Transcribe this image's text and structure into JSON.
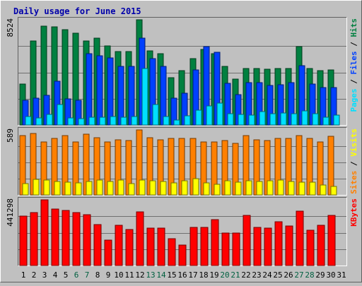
{
  "chart_data": {
    "type": "bar",
    "title": "Daily usage for June 2015",
    "x": [
      "1",
      "2",
      "3",
      "4",
      "5",
      "6",
      "7",
      "8",
      "9",
      "10",
      "11",
      "12",
      "13",
      "14",
      "15",
      "16",
      "17",
      "18",
      "19",
      "20",
      "21",
      "22",
      "23",
      "24",
      "25",
      "26",
      "27",
      "28",
      "29",
      "30",
      "31"
    ],
    "weekend_days": [
      6,
      7,
      13,
      14,
      20,
      21,
      27,
      28
    ],
    "colors": {
      "title": "#0000aa",
      "hits": "#008040",
      "files": "#0040ff",
      "pages": "#00e0ff",
      "visits": "#ffff00",
      "sites": "#ff8000",
      "kbytes": "#ff0000",
      "weekday_label": "#000000",
      "weekend_label": "#006040"
    },
    "panels": [
      {
        "id": "requests",
        "ymax_label": "8524",
        "ymax": 8524,
        "legend": [
          {
            "text": "Pages",
            "color": "#00e0ff"
          },
          {
            "text": "Files",
            "color": "#0040ff"
          },
          {
            "text": "Hits",
            "color": "#008040"
          }
        ],
        "series": [
          {
            "name": "Hits",
            "color": "#008040",
            "values": [
              3290,
              6800,
              8000,
              7950,
              7750,
              7450,
              6780,
              7060,
              6400,
              5940,
              5940,
              8524,
              6030,
              5770,
              3860,
              4430,
              5390,
              6100,
              5770,
              4750,
              3700,
              4580,
              4580,
              4530,
              4580,
              4570,
              6330,
              4580,
              4430,
              4490,
              0
            ]
          },
          {
            "name": "Files",
            "color": "#0040ff",
            "values": [
              1990,
              2190,
              2410,
              3520,
              2130,
              1990,
              5750,
              5630,
              5460,
              4740,
              4720,
              7050,
              5400,
              4720,
              2160,
              2590,
              4450,
              6350,
              5900,
              3350,
              2480,
              3450,
              3450,
              3210,
              3280,
              3450,
              4810,
              3300,
              3060,
              3040,
              0
            ]
          },
          {
            "name": "Pages",
            "color": "#00e0ff",
            "values": [
              660,
              600,
              860,
              1640,
              550,
              530,
              640,
              630,
              660,
              640,
              690,
              4590,
              1650,
              670,
              390,
              760,
              1180,
              1570,
              1800,
              930,
              830,
              790,
              1090,
              900,
              950,
              920,
              1130,
              890,
              650,
              810,
              0
            ]
          }
        ]
      },
      {
        "id": "visitors",
        "ymax_label": "589",
        "ymax": 589,
        "legend": [
          {
            "text": "Sites",
            "color": "#ff8000"
          },
          {
            "text": "Visits",
            "color": "#ffff00"
          }
        ],
        "series": [
          {
            "name": "Sites",
            "color": "#ff8000",
            "values": [
              540,
              560,
              480,
              510,
              535,
              480,
              550,
              520,
              480,
              500,
              490,
              590,
              520,
              500,
              510,
              510,
              510,
              480,
              480,
              490,
              470,
              535,
              500,
              490,
              510,
              510,
              540,
              510,
              480,
              530,
              0
            ]
          },
          {
            "name": "Visits",
            "color": "#ffff00",
            "values": [
              105,
              140,
              135,
              120,
              115,
              108,
              123,
              135,
              123,
              135,
              104,
              132,
              128,
              123,
              108,
              126,
              150,
              108,
              98,
              128,
              113,
              128,
              120,
              125,
              133,
              123,
              113,
              113,
              87,
              77,
              0
            ]
          }
        ]
      },
      {
        "id": "kbytes",
        "ymax_label": "441298",
        "ymax": 441298,
        "legend": [
          {
            "text": "KBytes",
            "color": "#ff0000"
          }
        ],
        "series": [
          {
            "name": "KBytes",
            "color": "#ff0000",
            "values": [
              330000,
              354000,
              441298,
              378000,
              369000,
              357000,
              343000,
              276000,
              173000,
              269000,
              242000,
              361000,
              253000,
              250000,
              181000,
              138000,
              255000,
              254000,
              310000,
              220000,
              218000,
              338000,
              257000,
              250000,
              292000,
              268000,
              365000,
              235000,
              270000,
              337000,
              0
            ]
          }
        ]
      }
    ]
  }
}
